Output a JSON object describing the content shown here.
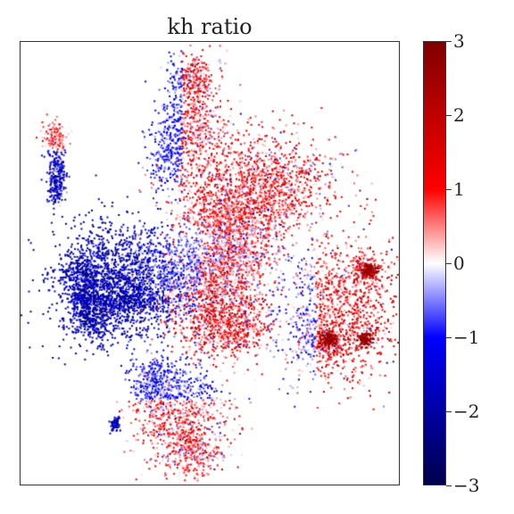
{
  "chart_data": {
    "type": "scatter",
    "title": "kh ratio",
    "xlabel": "",
    "ylabel": "",
    "colorbar": {
      "min": -3,
      "max": 3,
      "ticks": [
        3,
        2,
        1,
        0,
        -1,
        -2,
        -3
      ],
      "tick_labels": [
        "3",
        "2",
        "1",
        "0",
        "−1",
        "−2",
        "−3"
      ],
      "colormap": "seismic",
      "colors": [
        "#00004c",
        "#0000ff",
        "#ffffff",
        "#ff0000",
        "#800000"
      ]
    },
    "grid": false,
    "clusters": [
      {
        "name": "far-left streak",
        "mean_value": -1.6
      },
      {
        "name": "left cluster",
        "mean_value": -2.0
      },
      {
        "name": "top arc",
        "mean_value": 0.8
      },
      {
        "name": "upper-right cluster",
        "mean_value": 0.9
      },
      {
        "name": "center band",
        "mean_value": 0.3
      },
      {
        "name": "right cluster",
        "mean_value": 1.2
      },
      {
        "name": "lower-center cluster",
        "mean_value": 1.0
      },
      {
        "name": "bottom cluster",
        "mean_value": 0.7
      }
    ]
  }
}
